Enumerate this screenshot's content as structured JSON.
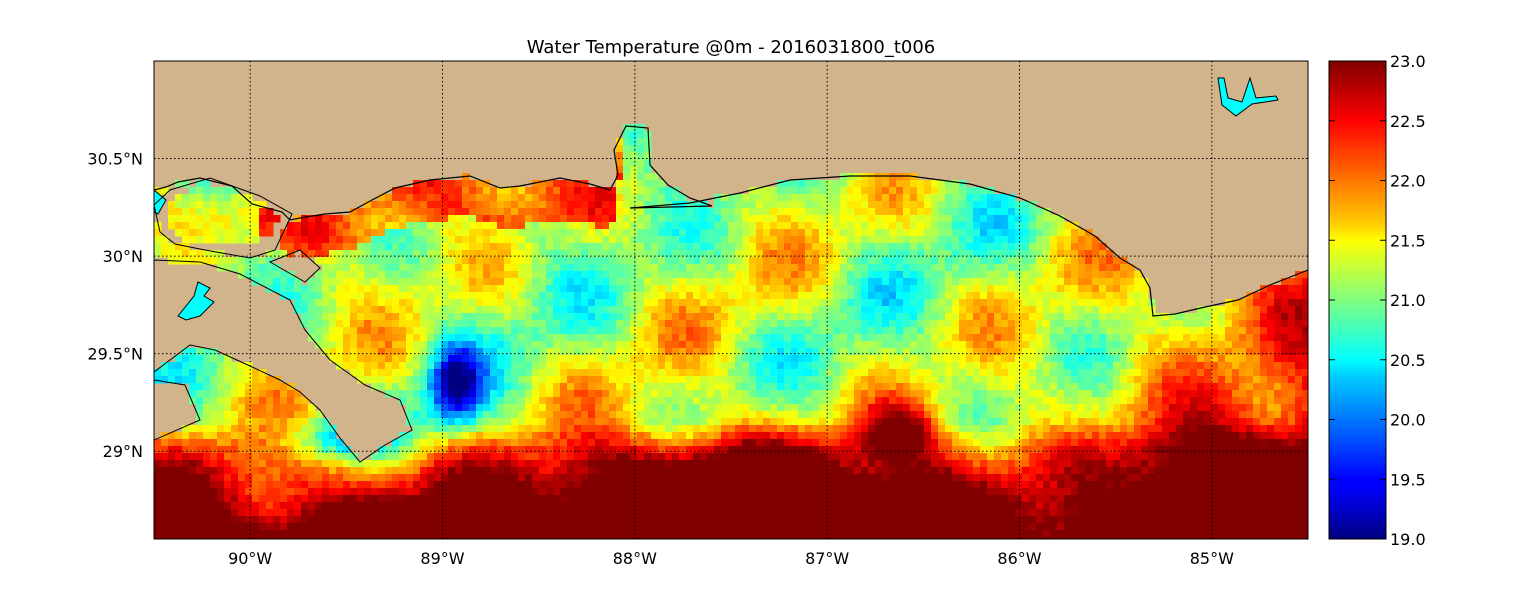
{
  "title": "Water Temperature @0m - 2016031800_t006",
  "map": {
    "lon_range": [
      -90.5,
      -84.5
    ],
    "lat_range": [
      28.55,
      31.0
    ],
    "meridians": [
      -90,
      -89,
      -88,
      -87,
      -86,
      -85
    ],
    "parallels": [
      29.0,
      29.5,
      30.0,
      30.5
    ],
    "lon_labels": [
      "90°W",
      "89°W",
      "88°W",
      "87°W",
      "86°W",
      "85°W"
    ],
    "lat_labels": [
      "29°N",
      "29.5°N",
      "30°N",
      "30.5°N"
    ],
    "land_color": "#d2b48c",
    "lake_color": "#00ffff",
    "grid": "dotted"
  },
  "colorbar": {
    "colormap": "jet",
    "min": 19.0,
    "max": 23.0,
    "ticks": [
      "19.0",
      "19.5",
      "20.0",
      "20.5",
      "21.0",
      "21.5",
      "22.0",
      "22.5",
      "23.0"
    ]
  },
  "chart_data": {
    "type": "heatmap",
    "variable": "Water Temperature",
    "depth": "0m",
    "run": "2016031800_t006",
    "value_range": [
      19.0,
      23.0
    ]
  }
}
